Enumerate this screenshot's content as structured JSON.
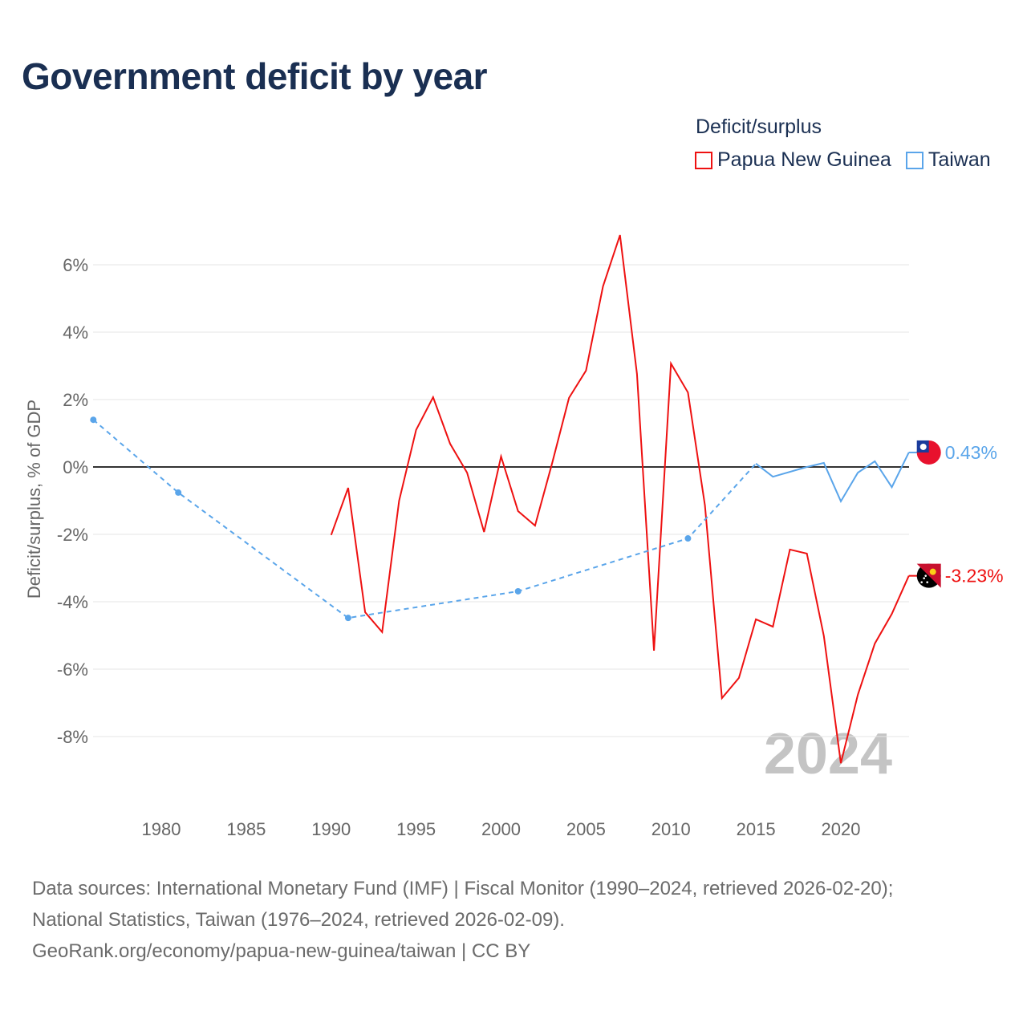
{
  "title": "Government deficit by year",
  "legend": {
    "title": "Deficit/surplus",
    "items": [
      {
        "label": "Papua New Guinea",
        "color": "#ee1111"
      },
      {
        "label": "Taiwan",
        "color": "#5aa5ea"
      }
    ]
  },
  "footer": {
    "line1": "Data sources: International Monetary Fund (IMF) | Fiscal Monitor (1990–2024, retrieved 2026-02-20);",
    "line2": "National Statistics, Taiwan (1976–2024, retrieved 2026-02-09).",
    "line3": "GeoRank.org/economy/papua-new-guinea/taiwan | CC BY"
  },
  "chart_data": {
    "type": "line",
    "title": "Government deficit by year",
    "ylabel": "Deficit/surplus, % of GDP",
    "xlabel": "",
    "xlim": [
      1975.8,
      2024
    ],
    "ylim": [
      -9.8,
      7.2
    ],
    "x_ticks": [
      1980,
      1985,
      1990,
      1995,
      2000,
      2005,
      2010,
      2015,
      2020
    ],
    "y_ticks": [
      {
        "v": 6,
        "label": "6%"
      },
      {
        "v": 4,
        "label": "4%"
      },
      {
        "v": 2,
        "label": "2%"
      },
      {
        "v": 0,
        "label": "0%"
      },
      {
        "v": -2,
        "label": "-2%"
      },
      {
        "v": -4,
        "label": "-4%"
      },
      {
        "v": -6,
        "label": "-6%"
      },
      {
        "v": -8,
        "label": "-8%"
      }
    ],
    "year_watermark": "2024",
    "series": [
      {
        "name": "Papua New Guinea",
        "color": "#ee1111",
        "end_label": "-3.23%",
        "x": [
          1990,
          1991,
          1992,
          1993,
          1994,
          1995,
          1996,
          1997,
          1998,
          1999,
          2000,
          2001,
          2002,
          2003,
          2004,
          2005,
          2006,
          2007,
          2008,
          2009,
          2010,
          2011,
          2012,
          2013,
          2014,
          2015,
          2016,
          2017,
          2018,
          2019,
          2020,
          2021,
          2022,
          2023,
          2024
        ],
        "y": [
          -2.02,
          -0.62,
          -4.31,
          -4.9,
          -1.0,
          1.1,
          2.07,
          0.69,
          -0.17,
          -1.93,
          0.31,
          -1.31,
          -1.74,
          0.1,
          2.05,
          2.86,
          5.36,
          6.88,
          2.76,
          -5.45,
          3.07,
          2.21,
          -1.14,
          -6.86,
          -6.26,
          -4.52,
          -4.74,
          -2.45,
          -2.57,
          -5.02,
          -8.79,
          -6.76,
          -5.24,
          -4.36,
          -3.23
        ]
      },
      {
        "name": "Taiwan",
        "color": "#5aa5ea",
        "end_label": "0.43%",
        "x": [
          1976,
          1981,
          1991,
          2001,
          2011,
          2015,
          2016,
          2018,
          2019,
          2020,
          2021,
          2022,
          2023,
          2024
        ],
        "y": [
          1.4,
          -0.76,
          -4.48,
          -3.69,
          -2.12,
          0.1,
          -0.29,
          0.0,
          0.12,
          -1.02,
          -0.17,
          0.17,
          -0.6,
          0.43
        ],
        "dashed_until": 2015,
        "markers": [
          1976,
          1981,
          1991,
          2001,
          2011
        ]
      }
    ]
  }
}
